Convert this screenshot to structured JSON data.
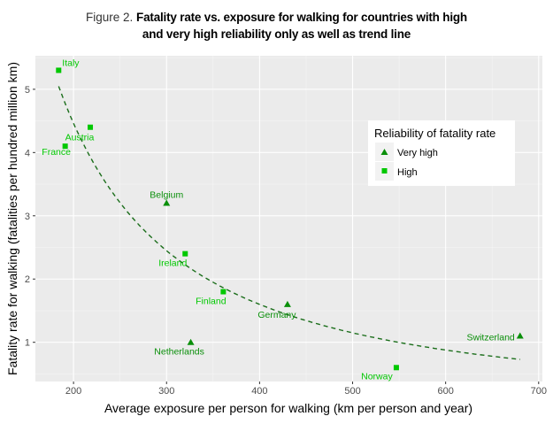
{
  "figure": {
    "prefix": "Figure 2.",
    "title_line1": "Fatality rate vs. exposure for walking for countries with high",
    "title_line2": "and very high reliability only as well as trend line"
  },
  "chart_data": {
    "type": "scatter",
    "title": "Fatality rate vs. exposure for walking for countries with high and very high reliability only as well as trend line",
    "xlabel": "Average exposure per person for walking (km per person and year)",
    "ylabel": "Fatality rate for walking (fatalities per hundred million km)",
    "xlim": [
      159,
      704
    ],
    "ylim": [
      0.38,
      5.53
    ],
    "xticks": [
      200,
      300,
      400,
      500,
      600,
      700
    ],
    "yticks": [
      1,
      2,
      3,
      4,
      5
    ],
    "grid": true,
    "legend": {
      "title": "Reliability of fatality rate",
      "position": "top-right",
      "entries": [
        {
          "label": "Very high",
          "marker": "triangle",
          "color": "#0a8f0a"
        },
        {
          "label": "High",
          "marker": "square",
          "color": "#00c800"
        }
      ]
    },
    "series": [
      {
        "name": "Very high",
        "marker": "triangle",
        "color": "#0a8f0a",
        "points": [
          {
            "country": "Belgium",
            "x": 300,
            "y": 3.2
          },
          {
            "country": "Germany",
            "x": 430,
            "y": 1.6
          },
          {
            "country": "Netherlands",
            "x": 326,
            "y": 1.0
          },
          {
            "country": "Switzerland",
            "x": 680,
            "y": 1.1
          }
        ]
      },
      {
        "name": "High",
        "marker": "square",
        "color": "#00c800",
        "points": [
          {
            "country": "Italy",
            "x": 184,
            "y": 5.3
          },
          {
            "country": "Austria",
            "x": 218,
            "y": 4.4
          },
          {
            "country": "France",
            "x": 191,
            "y": 4.1
          },
          {
            "country": "Ireland",
            "x": 320,
            "y": 2.4
          },
          {
            "country": "Finland",
            "x": 361,
            "y": 1.8
          },
          {
            "country": "Norway",
            "x": 547,
            "y": 0.6
          }
        ]
      }
    ],
    "trend_line": {
      "style": "dashed",
      "color": "#1b6e1b",
      "model": "power",
      "a": 11350,
      "b": -1.48,
      "x_range": [
        184,
        680
      ]
    }
  }
}
